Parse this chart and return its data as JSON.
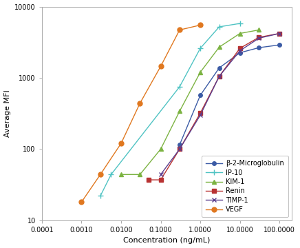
{
  "title": "",
  "xlabel": "Concentration (ng/mL)",
  "ylabel": "Average MFI",
  "series": {
    "b2m": {
      "label": "β-2-Microglobulin",
      "color": "#3B5BA5",
      "marker": "o",
      "x": [
        0.3,
        1.0,
        3.0,
        10.0,
        30.0,
        100.0
      ],
      "y": [
        115,
        570,
        1380,
        2250,
        2650,
        2900
      ]
    },
    "ip10": {
      "label": "IP-10",
      "color": "#4FC3C3",
      "marker": "x",
      "x": [
        0.003,
        0.0056,
        0.3,
        1.0,
        3.0,
        10.0
      ],
      "y": [
        22,
        44,
        750,
        2600,
        5200,
        5800
      ]
    },
    "kim1": {
      "label": "KIM-1",
      "color": "#7CB342",
      "marker": "^",
      "x": [
        0.01,
        0.03,
        0.1,
        0.3,
        1.0,
        3.0,
        10.0,
        30.0
      ],
      "y": [
        44,
        44,
        100,
        340,
        1200,
        2700,
        4200,
        4700
      ]
    },
    "renin": {
      "label": "Renin",
      "color": "#B83232",
      "marker": "s",
      "x": [
        0.05,
        0.1,
        0.3,
        1.0,
        3.0,
        10.0,
        30.0,
        100.0
      ],
      "y": [
        37,
        37,
        100,
        320,
        1050,
        2600,
        3700,
        4200
      ]
    },
    "timp1": {
      "label": "TIMP-1",
      "color": "#5B3E8E",
      "marker": "x",
      "x": [
        0.1,
        0.3,
        1.0,
        3.0,
        10.0,
        30.0,
        100.0
      ],
      "y": [
        44,
        100,
        300,
        1050,
        2400,
        3600,
        4200
      ]
    },
    "vegf": {
      "label": "VEGF",
      "color": "#E07820",
      "marker": "o",
      "x": [
        0.001,
        0.003,
        0.01,
        0.03,
        0.1,
        0.3,
        1.0
      ],
      "y": [
        18,
        44,
        120,
        440,
        1450,
        4700,
        5500
      ]
    }
  },
  "x_ticks": [
    0.0001,
    0.001,
    0.01,
    0.1,
    1.0,
    10.0,
    100.0
  ],
  "x_tick_labels": [
    "0.0001",
    "0.0010",
    "0.0100",
    "0.1000",
    "1.0000",
    "10.0000",
    "100.0000"
  ],
  "y_ticks": [
    10,
    100,
    1000,
    10000
  ],
  "y_tick_labels": [
    "10",
    "100",
    "1000",
    "10000"
  ],
  "xlim": [
    0.0001,
    200.0
  ],
  "ylim": [
    10,
    10000
  ],
  "background_color": "#ffffff",
  "legend_fontsize": 7,
  "axis_fontsize": 8,
  "tick_fontsize": 7
}
